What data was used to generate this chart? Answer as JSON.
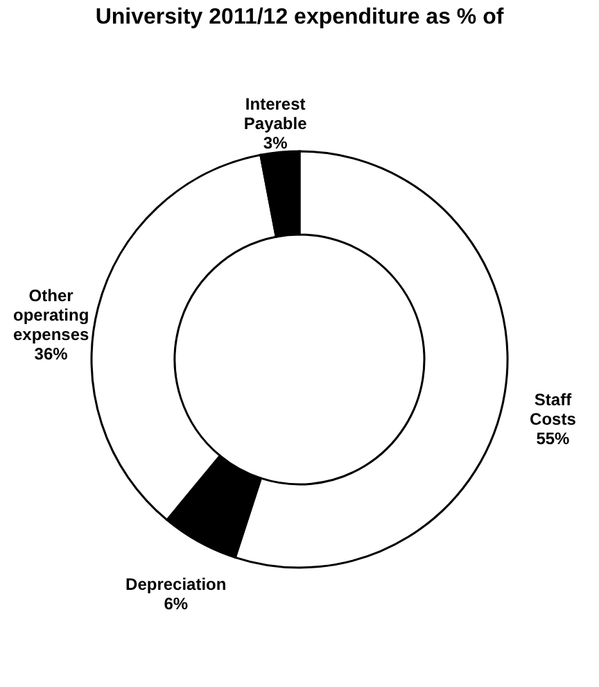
{
  "chart_data": {
    "type": "donut",
    "title": "University 2011/12 expenditure as % of",
    "categories": [
      "Staff Costs",
      "Depreciation",
      "Other operating expenses",
      "Interest Payable"
    ],
    "values": [
      55,
      6,
      36,
      3
    ],
    "value_labels": [
      "55%",
      "6%",
      "36%",
      "3%"
    ],
    "colors": [
      "#ffffff",
      "#000000",
      "#ffffff",
      "#000000"
    ],
    "legend": false
  }
}
